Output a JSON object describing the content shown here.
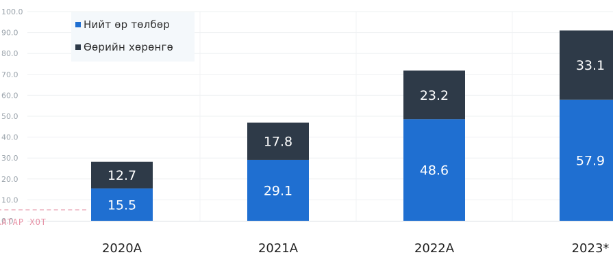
{
  "chart_data": {
    "type": "bar",
    "stacked": true,
    "categories": [
      "2020A",
      "2021A",
      "2022A",
      "2023*"
    ],
    "series": [
      {
        "name": "Нийт өр төлбөр",
        "values": [
          15.5,
          29.1,
          48.6,
          57.9
        ],
        "color": "#1f6fd1"
      },
      {
        "name": "Өөрийн хөрөнгө",
        "values": [
          12.7,
          17.8,
          23.2,
          33.1
        ],
        "color": "#2e3a48"
      }
    ],
    "y_ticks": [
      "0.0",
      "10.0",
      "20.0",
      "30.0",
      "40.0",
      "50.0",
      "60.0",
      "70.0",
      "80.0",
      "90.0",
      "100.0"
    ],
    "ylim": [
      0,
      100
    ],
    "grid": true,
    "legend_position": "top-left"
  },
  "stamp_text": "ААТАР ХОТ"
}
